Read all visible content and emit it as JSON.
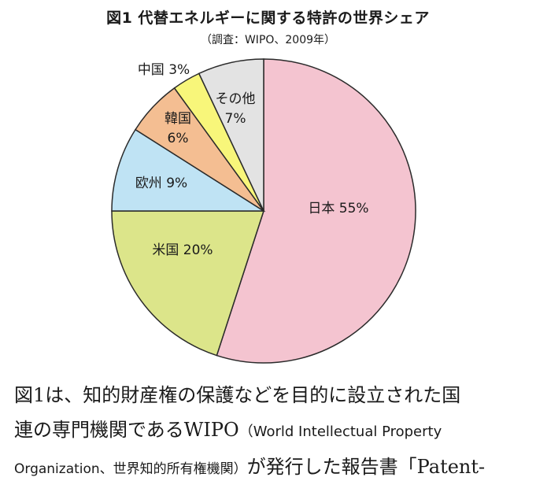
{
  "chart_data": {
    "type": "pie",
    "title": "図1 代替エネルギーに関する特許の世界シェア",
    "subtitle": "（調査：WIPO、2009年）",
    "slices": [
      {
        "label": "日本",
        "value": 55,
        "value_label": "55%",
        "color": "#F4C4D0"
      },
      {
        "label": "米国",
        "value": 20,
        "value_label": "20%",
        "color": "#DCE58A"
      },
      {
        "label": "欧州",
        "value": 9,
        "value_label": "9%",
        "color": "#BFE3F4"
      },
      {
        "label": "韓国",
        "value": 6,
        "value_label": "6%",
        "color": "#F4BE92"
      },
      {
        "label": "中国",
        "value": 3,
        "value_label": "3%",
        "color": "#F8F67A"
      },
      {
        "label": "その他",
        "value": 7,
        "value_label": "7%",
        "color": "#E3E3E3"
      }
    ]
  },
  "body": {
    "line1": "図1は、知的財産権の保護などを目的に設立された国",
    "line2_a": "連の専門機関であるWIPO",
    "line2_b": "（World Intellectual Property",
    "line3_a": "Organization、世界知的所有権機関）",
    "line3_b": "が発行した報告書「Patent-"
  }
}
